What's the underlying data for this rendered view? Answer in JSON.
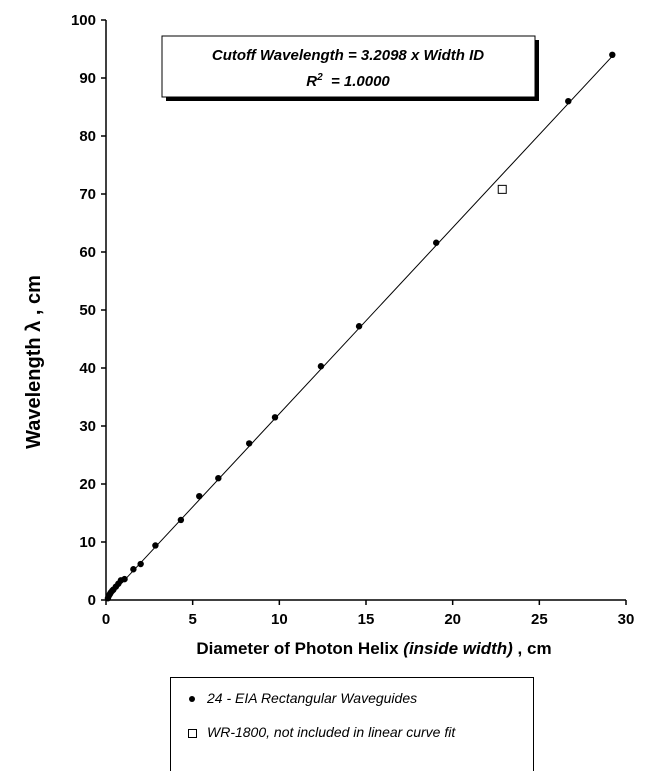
{
  "chart_data": {
    "type": "scatter",
    "xlabel_main": "Diameter of Photon Helix ",
    "xlabel_italic": "(inside width)",
    "xlabel_unit": " , cm",
    "ylabel": "Wavelength λ , cm",
    "xlim": [
      0,
      30
    ],
    "ylim": [
      0,
      100
    ],
    "xticks": [
      "0",
      "5",
      "10",
      "15",
      "20",
      "25",
      "30"
    ],
    "yticks": [
      "0",
      "10",
      "20",
      "30",
      "40",
      "50",
      "60",
      "70",
      "80",
      "90",
      "100"
    ],
    "annotation_line1": "Cutoff Wavelength = 3.2098 x Width ID",
    "annotation_line2_prefix": "R",
    "annotation_line2_sup": "2",
    "annotation_line2_suffix": "  = 1.0000",
    "fit_slope": 3.2098,
    "series": [
      {
        "name": "24 - EIA Rectangular Waveguides",
        "marker": "dot",
        "x": [
          0.11,
          0.16,
          0.22,
          0.28,
          0.36,
          0.43,
          0.57,
          0.71,
          0.86,
          1.07,
          1.58,
          2.0,
          2.85,
          4.32,
          5.38,
          6.48,
          8.26,
          9.75,
          12.4,
          14.6,
          19.05,
          26.67,
          29.21
        ],
        "y": [
          0.3,
          0.7,
          1.0,
          1.3,
          1.6,
          1.8,
          2.3,
          2.8,
          3.4,
          3.6,
          5.3,
          6.2,
          9.4,
          13.8,
          17.9,
          21.0,
          27.0,
          31.5,
          40.3,
          47.2,
          61.6,
          86.0,
          94.0
        ]
      },
      {
        "name": "WR-1800, not included in linear curve fit",
        "marker": "square",
        "x": [
          22.86
        ],
        "y": [
          70.8
        ]
      }
    ]
  }
}
